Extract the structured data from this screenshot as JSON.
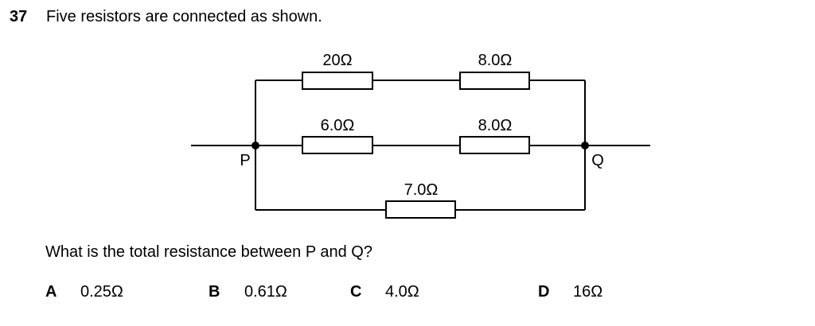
{
  "question": {
    "number": "37",
    "stem": "Five resistors are connected as shown.",
    "prompt": "What is the total resistance between P and Q?"
  },
  "circuit": {
    "nodes": {
      "left": "P",
      "right": "Q"
    },
    "resistors": {
      "top_left": "20Ω",
      "top_right": "8.0Ω",
      "middle_left": "6.0Ω",
      "middle_right": "8.0Ω",
      "bottom": "7.0Ω"
    }
  },
  "options": [
    {
      "letter": "A",
      "value": "0.25Ω"
    },
    {
      "letter": "B",
      "value": "0.61Ω"
    },
    {
      "letter": "C",
      "value": "4.0Ω"
    },
    {
      "letter": "D",
      "value": "16Ω"
    }
  ]
}
